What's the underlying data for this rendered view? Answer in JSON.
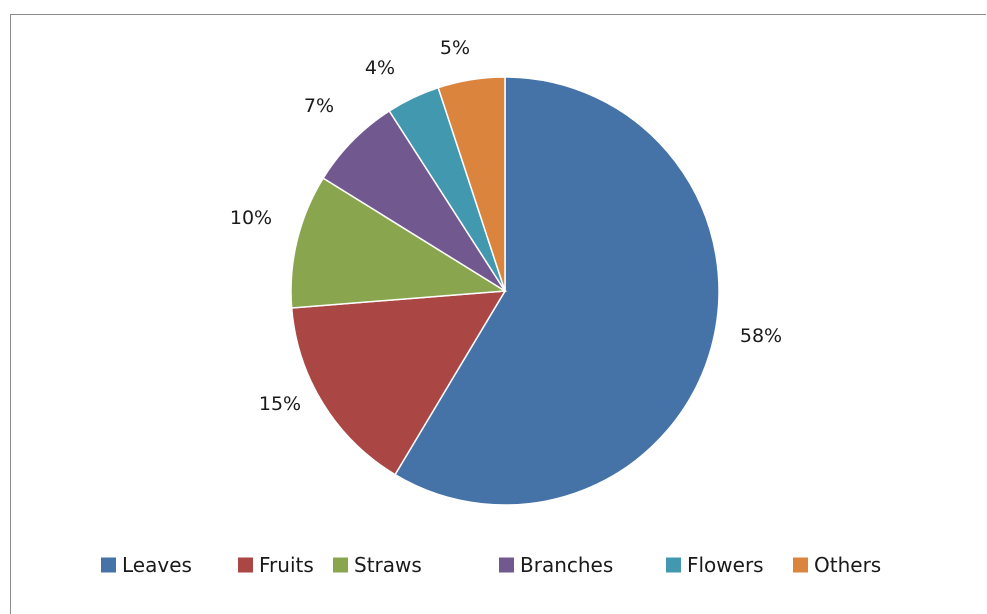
{
  "chart_data": {
    "type": "pie",
    "title": "",
    "legend_position": "bottom",
    "slices": [
      {
        "label": "Leaves",
        "value": 58,
        "value_label": "58%",
        "color": "#4572A7"
      },
      {
        "label": "Fruits",
        "value": 15,
        "value_label": "15%",
        "color": "#AA4643"
      },
      {
        "label": "Straws",
        "value": 10,
        "value_label": "10%",
        "color": "#89A54E"
      },
      {
        "label": "Branches",
        "value": 7,
        "value_label": "7%",
        "color": "#71588F"
      },
      {
        "label": "Flowers",
        "value": 4,
        "value_label": "4%",
        "color": "#4198AF"
      },
      {
        "label": "Others",
        "value": 5,
        "value_label": "5%",
        "color": "#DB843D"
      }
    ]
  }
}
